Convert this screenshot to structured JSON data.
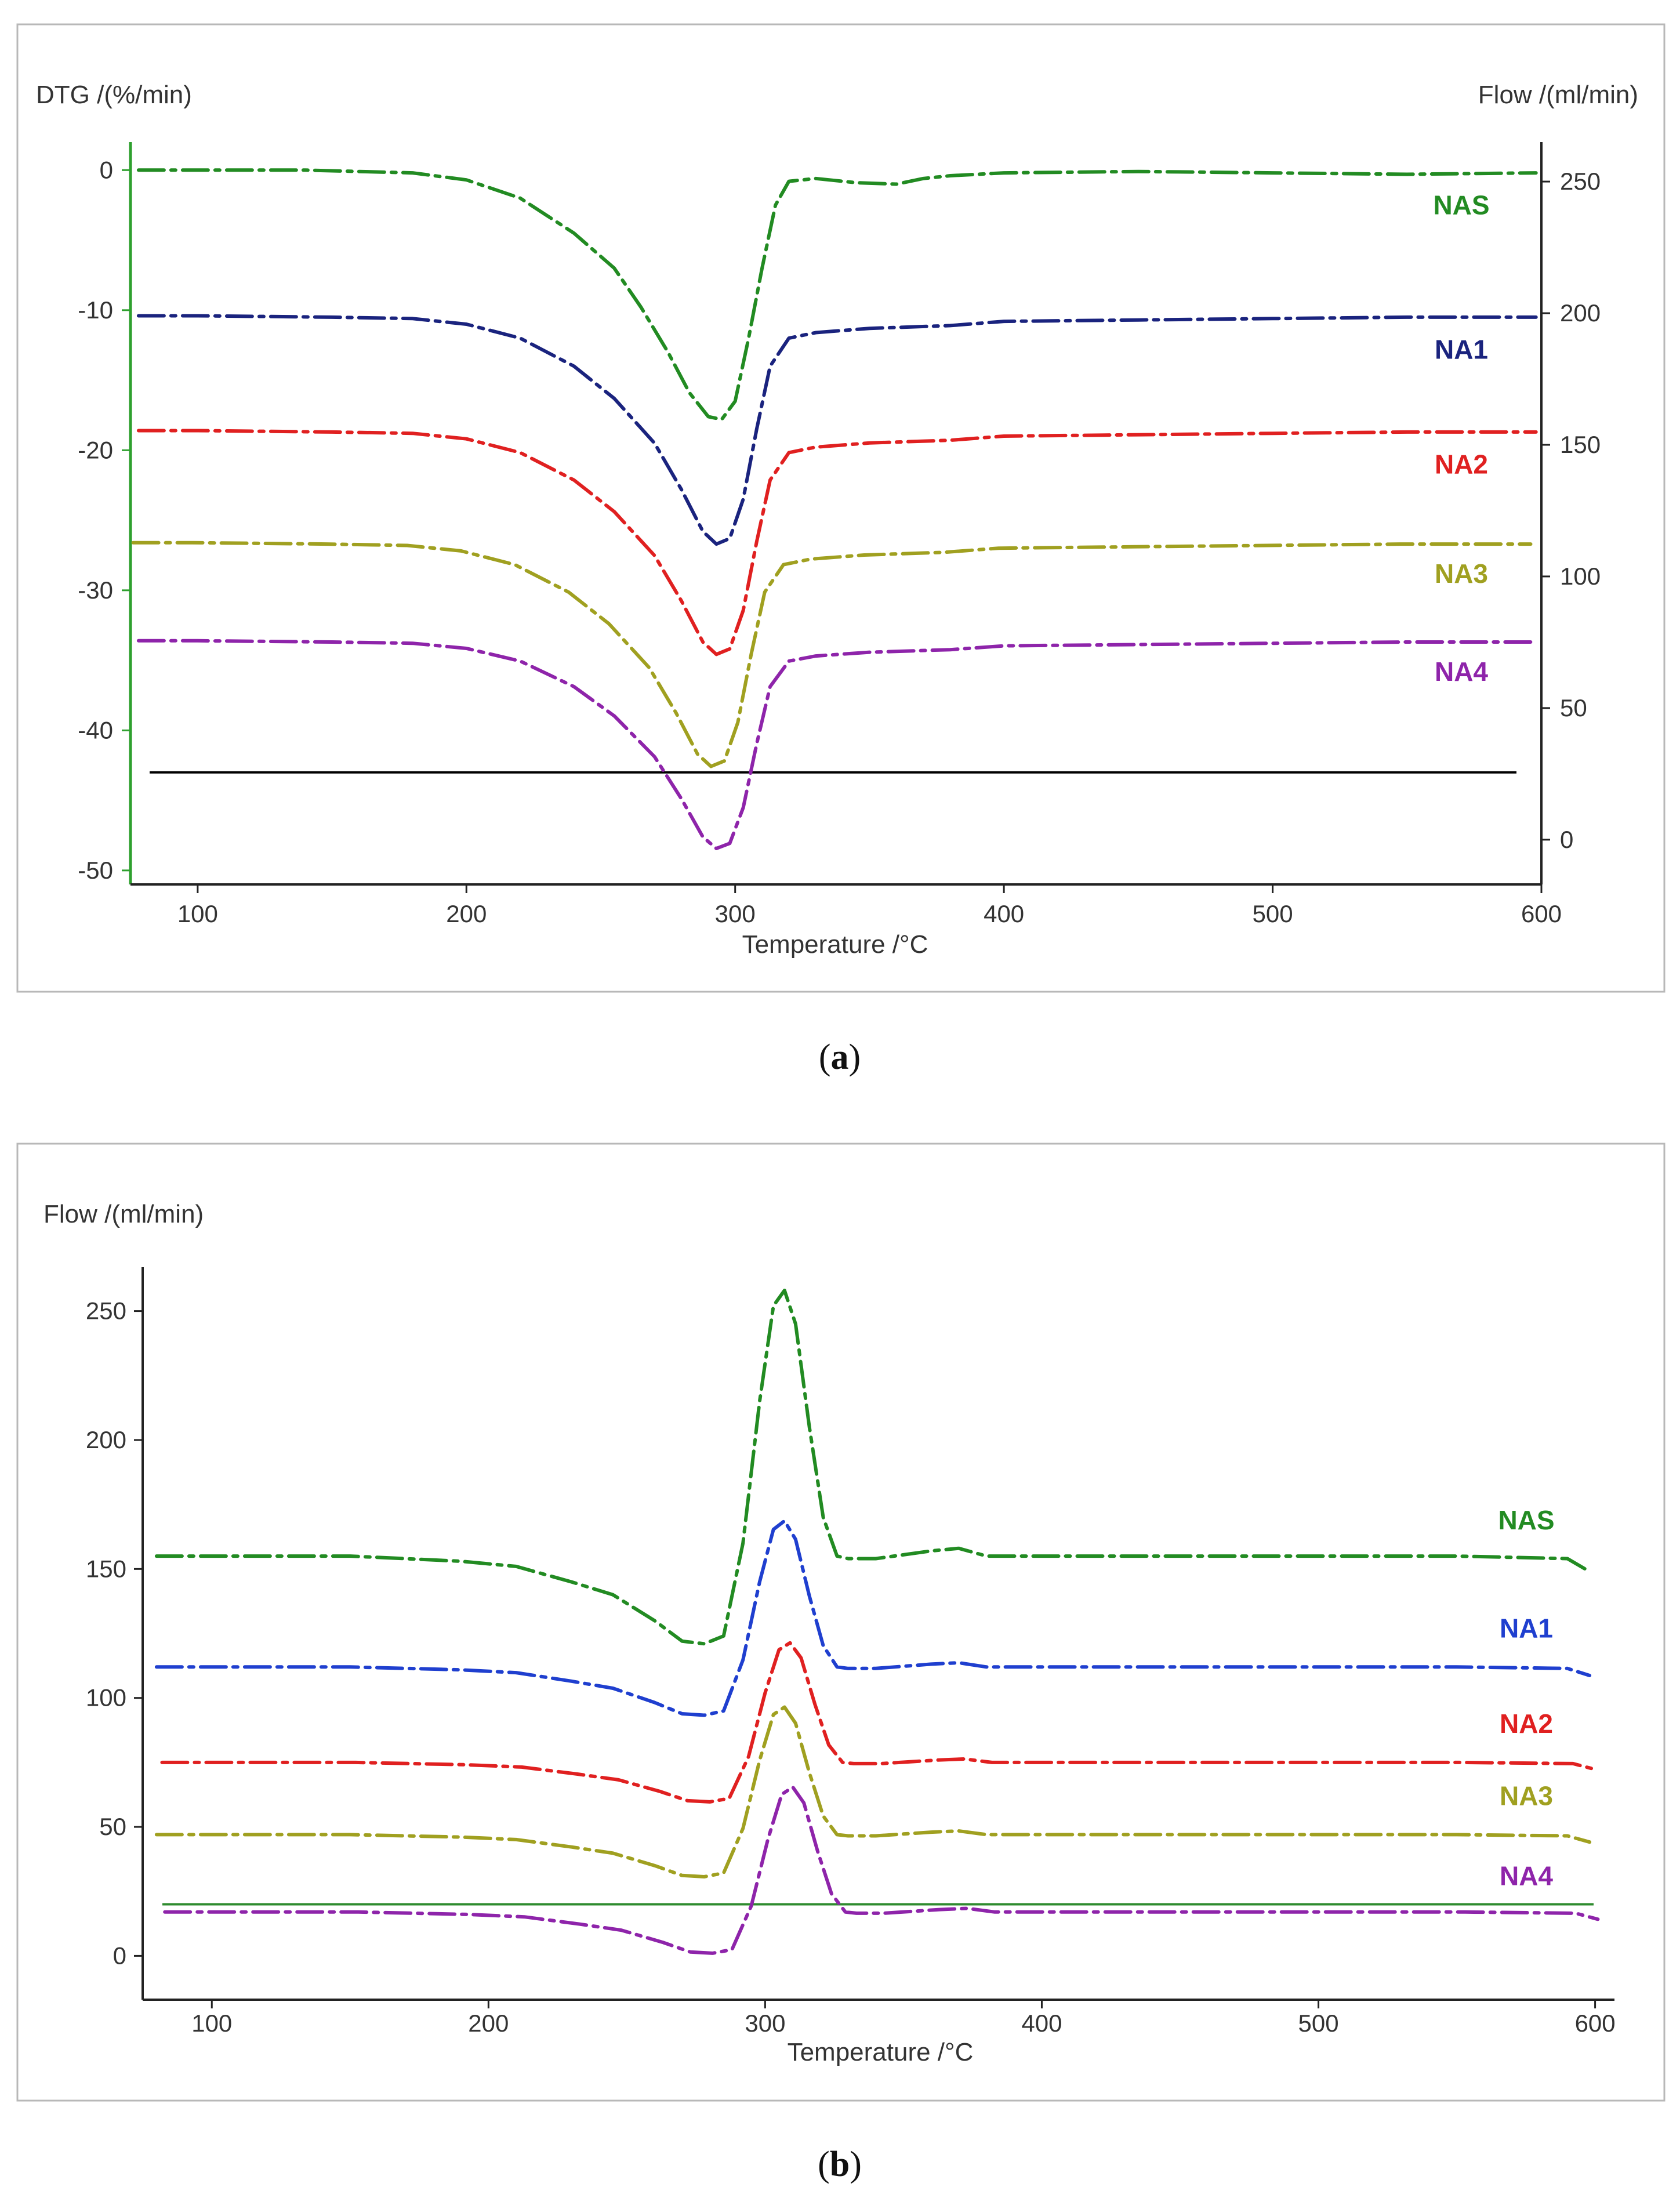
{
  "chart_data": [
    {
      "type": "line",
      "panel": "a",
      "caption": "a",
      "xlabel": "Temperature /°C",
      "ylabel": "DTG /(%/min)",
      "y2label": "Flow /(ml/min)",
      "xlim": [
        75,
        600
      ],
      "ylim": [
        -51,
        2
      ],
      "y2lim": [
        -17,
        265
      ],
      "xticks": [
        100,
        200,
        300,
        400,
        500,
        600
      ],
      "yticks": [
        0,
        -10,
        -20,
        -30,
        -40,
        -50
      ],
      "y2ticks": [
        250,
        200,
        150,
        100,
        50,
        0
      ],
      "xtick_labels": [
        "100",
        "200",
        "300",
        "400",
        "500",
        "600"
      ],
      "ytick_labels": [
        "0",
        "-10",
        "-20",
        "-30",
        "-40",
        "-50"
      ],
      "y2tick_labels": [
        "250",
        "200",
        "150",
        "100",
        "50",
        "0"
      ],
      "reference_line": {
        "y": -43,
        "color": "#000000"
      },
      "series": [
        {
          "name": "NAS",
          "color": "#228b22",
          "label_y": -2.5,
          "x": [
            78,
            100,
            140,
            180,
            200,
            220,
            240,
            255,
            265,
            275,
            283,
            290,
            295,
            300,
            305,
            310,
            315,
            320,
            330,
            345,
            360,
            370,
            380,
            400,
            450,
            500,
            550,
            598
          ],
          "y": [
            0,
            0,
            0,
            -0.2,
            -0.7,
            -2,
            -4.5,
            -7,
            -9.8,
            -13,
            -15.9,
            -17.6,
            -17.8,
            -16.5,
            -12,
            -7,
            -2.5,
            -0.8,
            -0.6,
            -0.9,
            -1,
            -0.6,
            -0.4,
            -0.2,
            -0.1,
            -0.2,
            -0.3,
            -0.2
          ]
        },
        {
          "name": "NA1",
          "color": "#1a237e",
          "label_y": -12.8,
          "x": [
            78,
            100,
            150,
            180,
            200,
            220,
            240,
            255,
            270,
            280,
            288,
            293,
            298,
            303,
            308,
            313,
            320,
            330,
            350,
            380,
            400,
            450,
            500,
            550,
            598
          ],
          "y": [
            -10.4,
            -10.4,
            -10.5,
            -10.6,
            -11,
            -12,
            -14,
            -16.3,
            -19.5,
            -22.8,
            -25.8,
            -26.7,
            -26.3,
            -23.5,
            -18.5,
            -14,
            -12,
            -11.6,
            -11.3,
            -11.1,
            -10.8,
            -10.7,
            -10.6,
            -10.5,
            -10.5
          ]
        },
        {
          "name": "NA2",
          "color": "#e02020",
          "label_y": -21
        },
        {
          "name": "NA3",
          "color": "#a0a020",
          "label_y": -28.8
        },
        {
          "name": "NA4",
          "color": "#8e24aa",
          "label_y": -35.8
        }
      ]
    },
    {
      "type": "line",
      "panel": "b",
      "caption": "b",
      "xlabel": "Temperature /°C",
      "ylabel": "Flow /(ml/min)",
      "xlim": [
        75,
        607
      ],
      "ylim": [
        -17,
        267
      ],
      "xticks": [
        100,
        200,
        300,
        400,
        500,
        600
      ],
      "yticks": [
        250,
        200,
        150,
        100,
        50,
        0
      ],
      "xtick_labels": [
        "100",
        "200",
        "300",
        "400",
        "500",
        "600"
      ],
      "ytick_labels": [
        "250",
        "200",
        "150",
        "100",
        "50",
        "0"
      ],
      "reference_line": {
        "y": 20,
        "color": "#2e8b2e"
      },
      "series": [
        {
          "name": "NAS",
          "color": "#228b22",
          "label_y": 169,
          "x": [
            80,
            150,
            190,
            210,
            230,
            245,
            260,
            270,
            278,
            285,
            292,
            298,
            303,
            307,
            311,
            316,
            321,
            326,
            330,
            340,
            360,
            370,
            380,
            400,
            450,
            500,
            550,
            590,
            598
          ],
          "y": [
            155,
            155,
            153,
            151,
            145,
            140,
            130,
            122,
            121,
            124,
            160,
            215,
            252,
            258,
            245,
            205,
            170,
            155,
            154,
            154,
            157,
            158,
            155,
            155,
            155,
            155,
            155,
            154,
            149
          ]
        },
        {
          "name": "NA1",
          "color": "#1f3fcf",
          "label_y": 127
        },
        {
          "name": "NA2",
          "color": "#e02020",
          "label_y": 90
        },
        {
          "name": "NA3",
          "color": "#a0a020",
          "label_y": 62
        },
        {
          "name": "NA4",
          "color": "#8e24aa",
          "label_y": 31
        }
      ]
    }
  ]
}
